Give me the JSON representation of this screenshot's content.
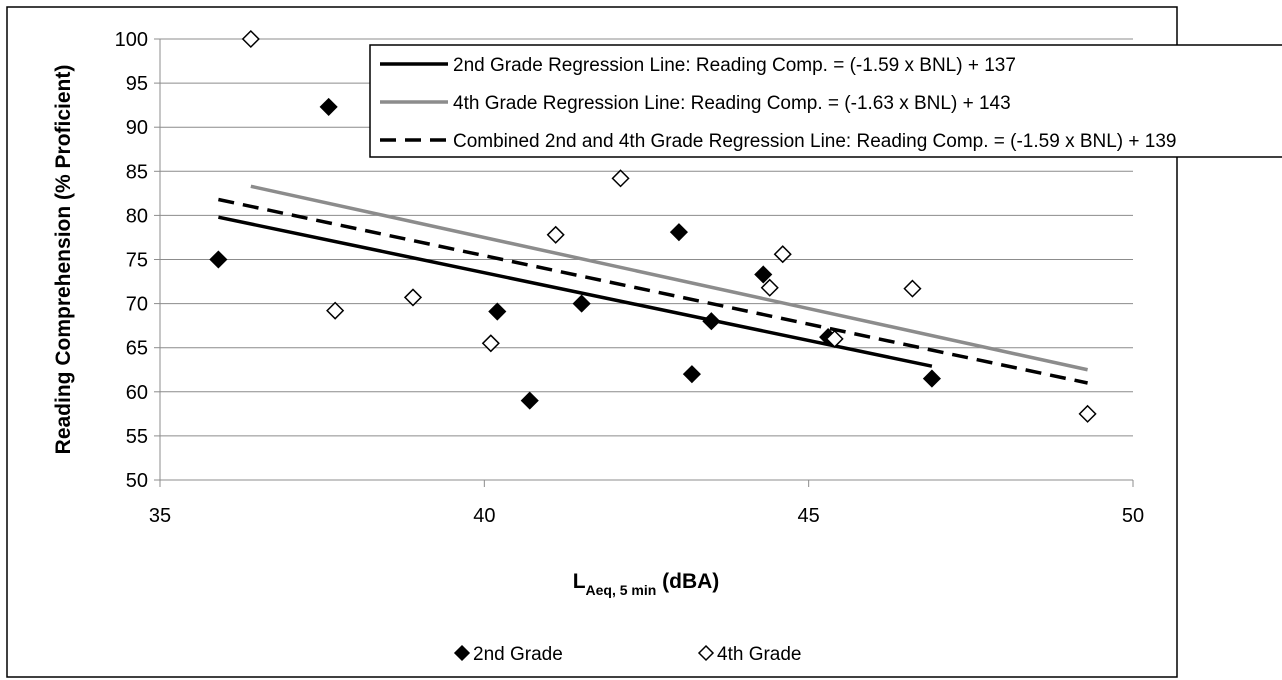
{
  "chart_data": {
    "type": "scatter",
    "xlabel": {
      "main": "L",
      "sub": "Aeq, 5 min",
      "unit": "(dBA)"
    },
    "ylabel": "Reading Comprehension (% Proficient)",
    "xlim": [
      35,
      50
    ],
    "ylim": [
      50,
      100
    ],
    "x_ticks": [
      35,
      40,
      45,
      50
    ],
    "y_ticks": [
      50,
      55,
      60,
      65,
      70,
      75,
      80,
      85,
      90,
      95,
      100
    ],
    "grid": "horizontal",
    "series": [
      {
        "name": "2nd Grade",
        "marker": "filled-diamond",
        "color": "#000000",
        "points": [
          [
            35.9,
            75
          ],
          [
            37.6,
            92.3
          ],
          [
            40.2,
            69.1
          ],
          [
            40.7,
            59
          ],
          [
            41.5,
            70
          ],
          [
            43.0,
            78.1
          ],
          [
            43.2,
            62
          ],
          [
            43.5,
            68
          ],
          [
            44.3,
            73.3
          ],
          [
            45.3,
            66.2
          ],
          [
            46.9,
            61.5
          ]
        ]
      },
      {
        "name": "4th Grade",
        "marker": "open-diamond",
        "color": "#000000",
        "points": [
          [
            36.4,
            100
          ],
          [
            37.7,
            69.2
          ],
          [
            38.9,
            70.7
          ],
          [
            40.1,
            65.5
          ],
          [
            41.1,
            77.8
          ],
          [
            42.1,
            84.2
          ],
          [
            44.4,
            71.8
          ],
          [
            44.6,
            75.6
          ],
          [
            45.4,
            66
          ],
          [
            46.6,
            71.7
          ],
          [
            49.3,
            57.5
          ]
        ]
      }
    ],
    "regression_lines": [
      {
        "name": "2nd Grade Regression Line: Reading Comp. = (-1.59 x BNL) + 137",
        "color": "#000000",
        "dash": "solid",
        "x_range": [
          35.9,
          46.9
        ],
        "y_range": [
          79.8,
          62.9
        ]
      },
      {
        "name": "4th Grade Regression Line: Reading Comp. = (-1.63 x BNL) + 143",
        "color": "#8c8c8c",
        "dash": "solid",
        "x_range": [
          36.4,
          49.3
        ],
        "y_range": [
          83.3,
          62.5
        ]
      },
      {
        "name": "Combined 2nd and 4th Grade Regression Line: Reading Comp. = (-1.59 x BNL) + 139",
        "color": "#000000",
        "dash": "dashed",
        "x_range": [
          35.9,
          49.3
        ],
        "y_range": [
          81.8,
          61
        ]
      }
    ],
    "legend_lines_position": "top-right",
    "legend_markers_position": "bottom"
  }
}
